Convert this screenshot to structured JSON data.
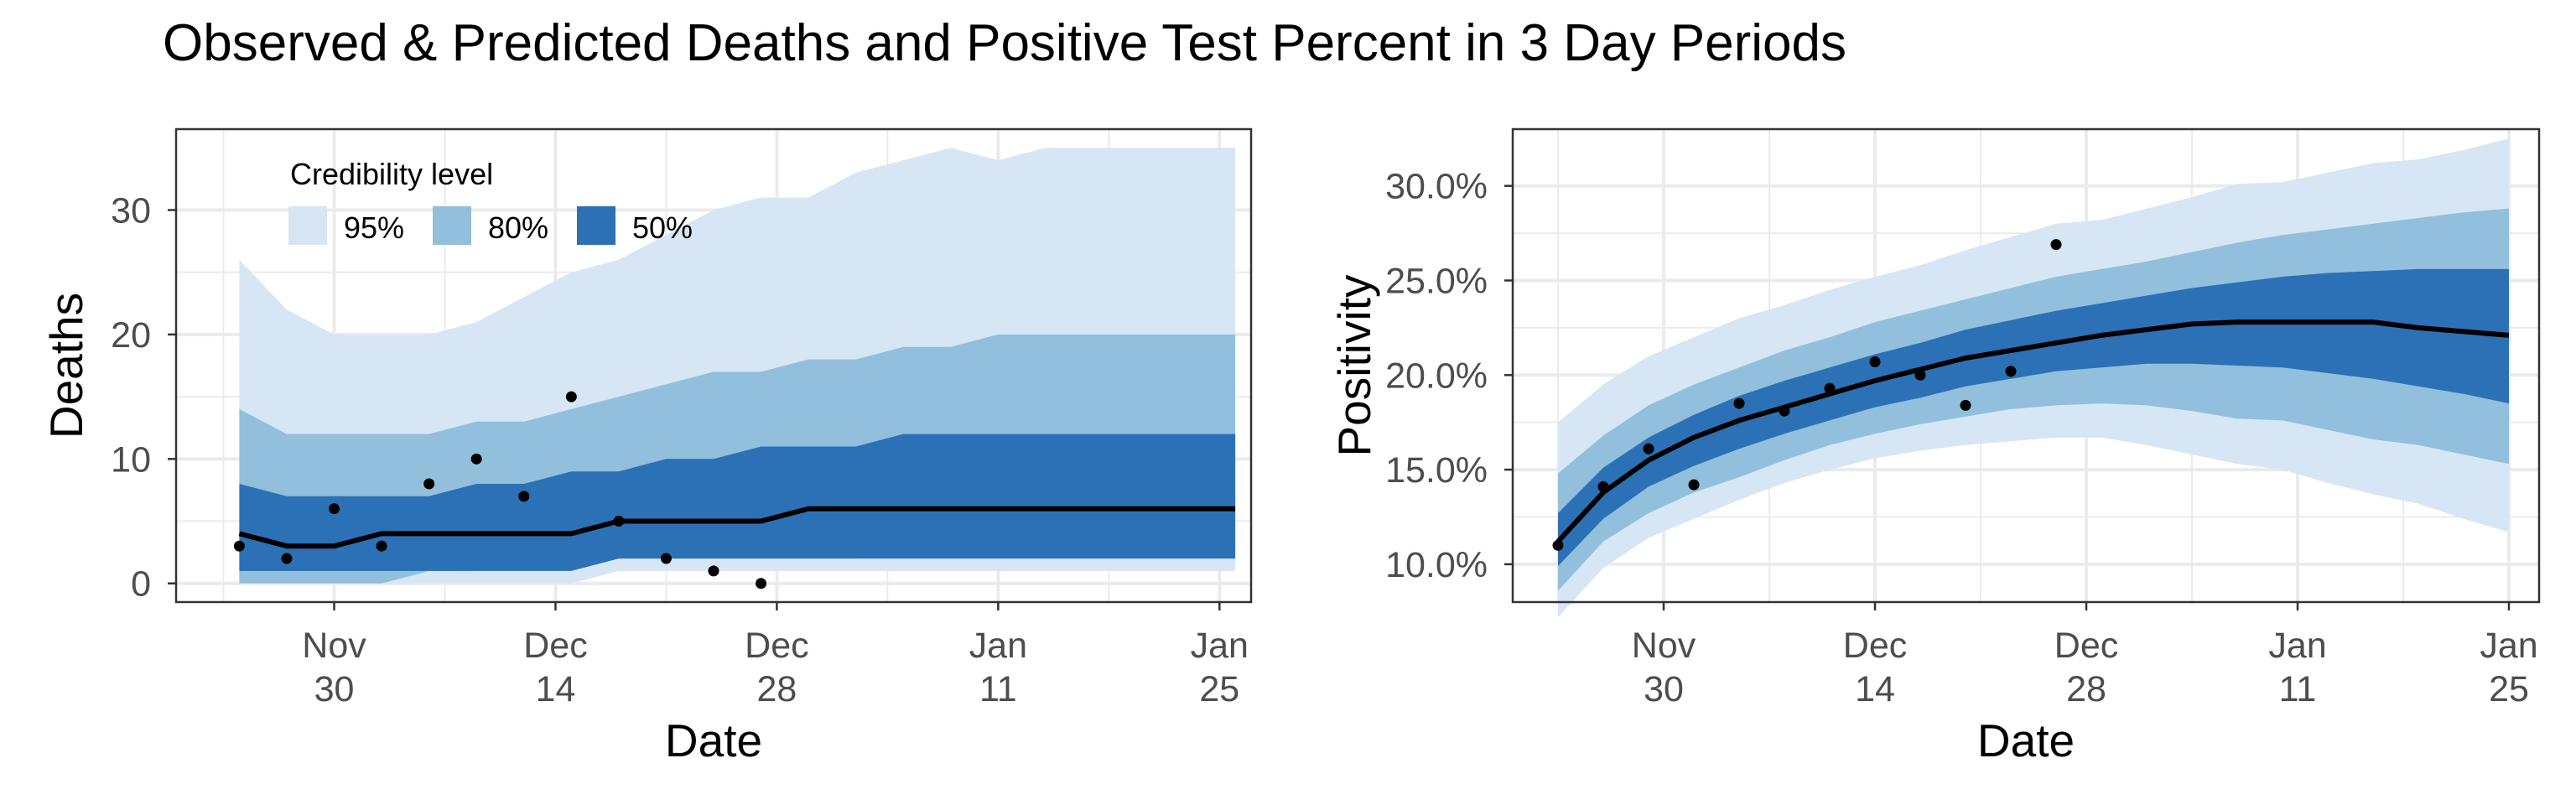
{
  "title": "Observed & Predicted Deaths and Positive Test Percent in 3 Day Periods",
  "colors": {
    "band95": "#d6e6f4",
    "band80": "#92bfdc",
    "band50": "#2c71b5",
    "median_line": "#000000",
    "observed_points": "#000000",
    "grid": "#ebebeb",
    "panel_border": "#333333"
  },
  "chart_data": [
    {
      "type": "area",
      "xlabel": "Date",
      "ylabel": "Deaths",
      "ylim": [
        -1.5,
        36.5
      ],
      "yticks": [
        0,
        10,
        20,
        30
      ],
      "ytick_labels": [
        "0",
        "10",
        "20",
        "30"
      ],
      "xlim": [
        "2020-11-20",
        "2021-01-27"
      ],
      "xticks": [
        "2020-11-30",
        "2020-12-14",
        "2020-12-28",
        "2021-01-11",
        "2021-01-25"
      ],
      "xtick_labels": [
        [
          "Nov",
          "30"
        ],
        [
          "Dec",
          "14"
        ],
        [
          "Dec",
          "28"
        ],
        [
          "Jan",
          "11"
        ],
        [
          "Jan",
          "25"
        ]
      ],
      "grid": true,
      "legend": {
        "title": "Credibility level",
        "placement": "top-left",
        "entries": [
          "95%",
          "80%",
          "50%"
        ]
      },
      "x": [
        "2020-11-24",
        "2020-11-27",
        "2020-11-30",
        "2020-12-03",
        "2020-12-06",
        "2020-12-09",
        "2020-12-12",
        "2020-12-15",
        "2020-12-18",
        "2020-12-21",
        "2020-12-24",
        "2020-12-27",
        "2020-12-30",
        "2021-01-02",
        "2021-01-05",
        "2021-01-08",
        "2021-01-11",
        "2021-01-14",
        "2021-01-17",
        "2021-01-20",
        "2021-01-23",
        "2021-01-26"
      ],
      "median": [
        4,
        3,
        3,
        4,
        4,
        4,
        4,
        4,
        5,
        5,
        5,
        5,
        6,
        6,
        6,
        6,
        6,
        6,
        6,
        6,
        6,
        6
      ],
      "bands": [
        {
          "level": "95%",
          "lower": [
            0,
            0,
            0,
            0,
            0,
            0,
            0,
            0,
            1,
            1,
            1,
            1,
            1,
            1,
            1,
            1,
            1,
            1,
            1,
            1,
            1,
            1
          ],
          "upper": [
            26,
            22,
            20,
            20,
            20,
            21,
            23,
            25,
            26,
            28,
            30,
            31,
            31,
            33,
            34,
            35,
            34,
            35,
            35,
            35,
            35,
            35
          ]
        },
        {
          "level": "80%",
          "lower": [
            0,
            0,
            0,
            0,
            1,
            1,
            2,
            2,
            2,
            2,
            2,
            2,
            2,
            2,
            3,
            3,
            3,
            3,
            3,
            3,
            3,
            3
          ],
          "upper": [
            14,
            12,
            12,
            12,
            12,
            13,
            13,
            14,
            15,
            16,
            17,
            17,
            18,
            18,
            19,
            19,
            20,
            20,
            20,
            20,
            20,
            20
          ]
        },
        {
          "level": "50%",
          "lower": [
            1,
            1,
            1,
            1,
            1,
            1,
            1,
            1,
            2,
            2,
            2,
            2,
            2,
            2,
            2,
            2,
            2,
            2,
            2,
            2,
            2,
            2
          ],
          "upper": [
            8,
            7,
            7,
            7,
            7,
            8,
            8,
            9,
            9,
            10,
            10,
            11,
            11,
            11,
            12,
            12,
            12,
            12,
            12,
            12,
            12,
            12
          ]
        }
      ],
      "observed": [
        {
          "x": "2020-11-24",
          "y": 3
        },
        {
          "x": "2020-11-27",
          "y": 2
        },
        {
          "x": "2020-11-30",
          "y": 6
        },
        {
          "x": "2020-12-03",
          "y": 3
        },
        {
          "x": "2020-12-06",
          "y": 8
        },
        {
          "x": "2020-12-09",
          "y": 10
        },
        {
          "x": "2020-12-12",
          "y": 7
        },
        {
          "x": "2020-12-15",
          "y": 15
        },
        {
          "x": "2020-12-18",
          "y": 5
        },
        {
          "x": "2020-12-21",
          "y": 2
        },
        {
          "x": "2020-12-24",
          "y": 1
        },
        {
          "x": "2020-12-27",
          "y": 0
        }
      ]
    },
    {
      "type": "area",
      "xlabel": "Date",
      "ylabel": "Positivity",
      "ylim": [
        8.0,
        33.0
      ],
      "yticks": [
        10,
        15,
        20,
        25,
        30
      ],
      "ytick_labels": [
        "10.0%",
        "15.0%",
        "20.0%",
        "25.0%",
        "30.0%"
      ],
      "xlim": [
        "2020-11-20",
        "2021-01-27"
      ],
      "xticks": [
        "2020-11-30",
        "2020-12-14",
        "2020-12-28",
        "2021-01-11",
        "2021-01-25"
      ],
      "xtick_labels": [
        [
          "Nov",
          "30"
        ],
        [
          "Dec",
          "14"
        ],
        [
          "Dec",
          "28"
        ],
        [
          "Jan",
          "11"
        ],
        [
          "Jan",
          "25"
        ]
      ],
      "grid": true,
      "x": [
        "2020-11-23",
        "2020-11-26",
        "2020-11-29",
        "2020-12-02",
        "2020-12-05",
        "2020-12-08",
        "2020-12-11",
        "2020-12-14",
        "2020-12-17",
        "2020-12-20",
        "2020-12-23",
        "2020-12-26",
        "2020-12-29",
        "2021-01-01",
        "2021-01-04",
        "2021-01-07",
        "2021-01-10",
        "2021-01-13",
        "2021-01-16",
        "2021-01-19",
        "2021-01-22",
        "2021-01-25"
      ],
      "median": [
        11.2,
        13.8,
        15.5,
        16.7,
        17.6,
        18.3,
        19.0,
        19.7,
        20.3,
        20.9,
        21.3,
        21.7,
        22.1,
        22.4,
        22.7,
        22.8,
        22.8,
        22.8,
        22.8,
        22.5,
        22.3,
        22.1
      ],
      "bands": [
        {
          "level": "95%",
          "lower": [
            7.2,
            9.8,
            11.4,
            12.4,
            13.4,
            14.3,
            15.0,
            15.6,
            16.0,
            16.3,
            16.5,
            16.7,
            16.7,
            16.3,
            15.8,
            15.3,
            15.0,
            14.3,
            13.7,
            13.2,
            12.4,
            11.7
          ],
          "upper": [
            17.5,
            19.5,
            21.0,
            22.0,
            23.0,
            23.7,
            24.5,
            25.2,
            25.8,
            26.6,
            27.3,
            28.0,
            28.2,
            28.8,
            29.4,
            30.1,
            30.2,
            30.7,
            31.2,
            31.4,
            31.9,
            32.5
          ]
        },
        {
          "level": "80%",
          "lower": [
            8.6,
            11.2,
            12.7,
            13.8,
            14.6,
            15.5,
            16.3,
            16.9,
            17.4,
            17.8,
            18.2,
            18.4,
            18.5,
            18.4,
            18.1,
            17.7,
            17.6,
            17.1,
            16.6,
            16.3,
            15.8,
            15.3
          ],
          "upper": [
            14.8,
            16.8,
            18.4,
            19.5,
            20.4,
            21.3,
            22.0,
            22.8,
            23.4,
            24.0,
            24.6,
            25.2,
            25.6,
            26.0,
            26.5,
            27.0,
            27.4,
            27.7,
            28.0,
            28.3,
            28.6,
            28.8
          ]
        },
        {
          "level": "50%",
          "lower": [
            9.9,
            12.4,
            14.1,
            15.2,
            16.1,
            16.9,
            17.6,
            18.3,
            18.8,
            19.4,
            19.8,
            20.2,
            20.4,
            20.6,
            20.6,
            20.5,
            20.4,
            20.1,
            19.8,
            19.4,
            19.0,
            18.5
          ],
          "upper": [
            12.7,
            15.1,
            16.7,
            17.9,
            18.9,
            19.7,
            20.4,
            21.1,
            21.7,
            22.4,
            22.9,
            23.4,
            23.8,
            24.2,
            24.6,
            24.9,
            25.2,
            25.4,
            25.5,
            25.6,
            25.6,
            25.6
          ]
        }
      ],
      "observed": [
        {
          "x": "2020-11-23",
          "y": 11.0
        },
        {
          "x": "2020-11-26",
          "y": 14.1
        },
        {
          "x": "2020-11-29",
          "y": 16.1
        },
        {
          "x": "2020-12-02",
          "y": 14.2
        },
        {
          "x": "2020-12-05",
          "y": 18.5
        },
        {
          "x": "2020-12-08",
          "y": 18.1
        },
        {
          "x": "2020-12-11",
          "y": 19.3
        },
        {
          "x": "2020-12-14",
          "y": 20.7
        },
        {
          "x": "2020-12-17",
          "y": 20.0
        },
        {
          "x": "2020-12-20",
          "y": 18.4
        },
        {
          "x": "2020-12-23",
          "y": 20.2
        },
        {
          "x": "2020-12-26",
          "y": 26.9
        }
      ]
    }
  ]
}
